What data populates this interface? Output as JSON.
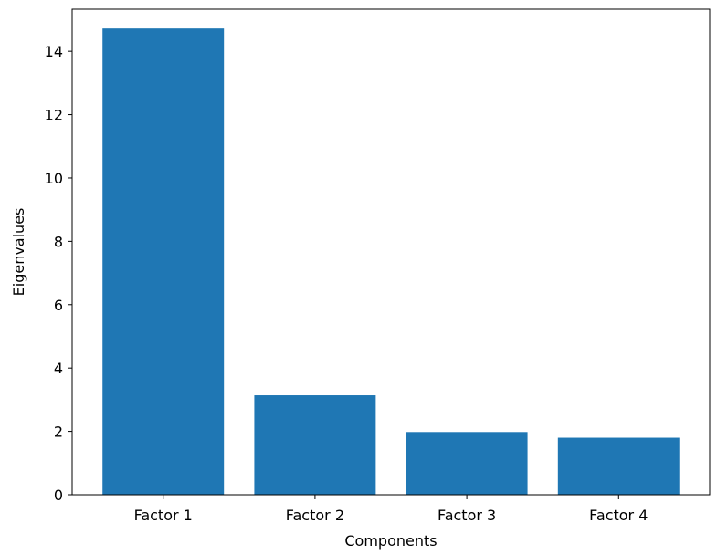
{
  "chart_data": {
    "type": "bar",
    "title": "",
    "xlabel": "Components",
    "ylabel": "Eigenvalues",
    "categories": [
      "Factor 1",
      "Factor 2",
      "Factor 3",
      "Factor 4"
    ],
    "values": [
      14.72,
      3.14,
      1.98,
      1.8
    ],
    "ylim": [
      0,
      15.33
    ],
    "yticks": [
      0,
      2,
      4,
      6,
      8,
      10,
      12,
      14
    ],
    "ytick_labels": [
      "0",
      "2",
      "4",
      "6",
      "8",
      "10",
      "12",
      "14"
    ],
    "grid": false,
    "legend": "none",
    "bar_color": "#1f77b4"
  }
}
